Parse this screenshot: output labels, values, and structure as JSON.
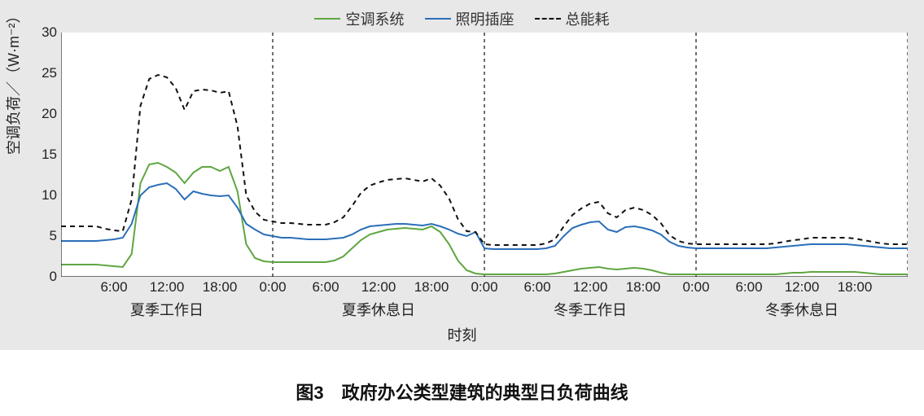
{
  "caption": "图3　政府办公类型建筑的典型日负荷曲线",
  "chart": {
    "type": "line",
    "background_color": "#e8e8e8",
    "plot_background_color": "#ffffff",
    "y_axis": {
      "label": "空调负荷／（W·m⁻²）",
      "min": 0,
      "max": 30,
      "ticks": [
        0,
        5,
        10,
        15,
        20,
        25,
        30
      ],
      "tick_fontsize": 17,
      "label_fontsize": 18,
      "tick_color": "#222222"
    },
    "x_axis": {
      "title": "时刻",
      "title_fontsize": 18,
      "sections": [
        "夏季工作日",
        "夏季休息日",
        "冬季工作日",
        "冬季休息日"
      ],
      "section_fontsize": 18,
      "tick_labels": [
        "6:00",
        "12:00",
        "18:00",
        "0:00",
        "6:00",
        "12:00",
        "18:00",
        "0:00",
        "6:00",
        "12:00",
        "18:00",
        "0:00",
        "6:00",
        "12:00",
        "18:00"
      ],
      "tick_hours": [
        6,
        12,
        18,
        24,
        30,
        36,
        42,
        48,
        54,
        60,
        66,
        72,
        78,
        84,
        90
      ]
    },
    "legend": {
      "fontsize": 18,
      "items": [
        {
          "label": "空调系统",
          "color": "#5fa641",
          "dash": "solid"
        },
        {
          "label": "照明插座",
          "color": "#2b6fb8",
          "dash": "solid"
        },
        {
          "label": "总能耗",
          "color": "#111111",
          "dash": "dashed"
        }
      ]
    },
    "divider_hours": [
      24,
      48,
      72,
      96
    ],
    "divider_color": "#111111",
    "divider_dash": "4,4",
    "line_width": 2,
    "series": {
      "hvac": {
        "color": "#5fa641",
        "dash": "none",
        "values": [
          1.5,
          1.5,
          1.5,
          1.5,
          1.5,
          1.4,
          1.3,
          1.2,
          2.8,
          11.5,
          13.8,
          14.0,
          13.5,
          12.8,
          11.5,
          12.8,
          13.5,
          13.5,
          13.0,
          13.5,
          10.5,
          4.0,
          2.3,
          1.9,
          1.8,
          1.8,
          1.8,
          1.8,
          1.8,
          1.8,
          1.8,
          2.0,
          2.5,
          3.5,
          4.5,
          5.2,
          5.5,
          5.8,
          5.9,
          6.0,
          5.9,
          5.8,
          6.2,
          5.5,
          4.0,
          2.0,
          0.8,
          0.4,
          0.3,
          0.3,
          0.3,
          0.3,
          0.3,
          0.3,
          0.3,
          0.3,
          0.4,
          0.6,
          0.8,
          1.0,
          1.1,
          1.2,
          1.0,
          0.9,
          1.0,
          1.1,
          1.0,
          0.8,
          0.5,
          0.3,
          0.3,
          0.3,
          0.3,
          0.3,
          0.3,
          0.3,
          0.3,
          0.3,
          0.3,
          0.3,
          0.3,
          0.3,
          0.4,
          0.5,
          0.5,
          0.6,
          0.6,
          0.6,
          0.6,
          0.6,
          0.6,
          0.5,
          0.4,
          0.3,
          0.3,
          0.3,
          0.3
        ]
      },
      "lighting": {
        "color": "#2b6fb8",
        "dash": "none",
        "values": [
          4.4,
          4.4,
          4.4,
          4.4,
          4.4,
          4.5,
          4.6,
          4.8,
          6.5,
          10.0,
          11.0,
          11.3,
          11.5,
          10.8,
          9.5,
          10.5,
          10.2,
          10.0,
          9.9,
          10.0,
          8.5,
          6.5,
          5.8,
          5.2,
          5.0,
          4.8,
          4.8,
          4.7,
          4.6,
          4.6,
          4.6,
          4.7,
          4.8,
          5.2,
          5.8,
          6.2,
          6.3,
          6.4,
          6.5,
          6.5,
          6.4,
          6.3,
          6.5,
          6.2,
          5.8,
          5.3,
          5.0,
          5.5,
          3.5,
          3.4,
          3.4,
          3.4,
          3.4,
          3.4,
          3.4,
          3.5,
          3.8,
          5.0,
          6.0,
          6.4,
          6.7,
          6.8,
          5.8,
          5.5,
          6.1,
          6.2,
          6.0,
          5.7,
          5.2,
          4.3,
          3.8,
          3.6,
          3.5,
          3.5,
          3.5,
          3.5,
          3.5,
          3.5,
          3.5,
          3.5,
          3.5,
          3.6,
          3.7,
          3.8,
          3.9,
          4.0,
          4.0,
          4.0,
          4.0,
          4.0,
          3.9,
          3.8,
          3.7,
          3.6,
          3.5,
          3.5,
          3.5
        ]
      },
      "total": {
        "color": "#111111",
        "dash": "6,5",
        "values": [
          6.2,
          6.2,
          6.2,
          6.2,
          6.2,
          5.9,
          5.7,
          5.6,
          9.5,
          21.0,
          24.3,
          24.8,
          24.5,
          23.2,
          20.5,
          22.8,
          23.0,
          22.9,
          22.6,
          22.8,
          18.5,
          10.0,
          8.0,
          7.0,
          6.8,
          6.6,
          6.6,
          6.5,
          6.4,
          6.4,
          6.4,
          6.7,
          7.3,
          8.7,
          10.3,
          11.2,
          11.6,
          11.9,
          12.0,
          12.1,
          11.9,
          11.7,
          12.1,
          11.2,
          9.6,
          7.1,
          5.6,
          5.5,
          4.0,
          3.9,
          3.9,
          3.9,
          3.9,
          3.9,
          3.9,
          4.1,
          4.6,
          6.2,
          7.6,
          8.4,
          9.0,
          9.2,
          7.8,
          7.3,
          8.2,
          8.5,
          8.2,
          7.6,
          6.6,
          5.1,
          4.4,
          4.1,
          4.0,
          4.0,
          4.0,
          4.0,
          4.0,
          4.0,
          4.0,
          4.0,
          4.0,
          4.1,
          4.3,
          4.5,
          4.6,
          4.8,
          4.8,
          4.8,
          4.8,
          4.8,
          4.7,
          4.5,
          4.3,
          4.1,
          4.0,
          4.0,
          4.0
        ]
      }
    }
  }
}
